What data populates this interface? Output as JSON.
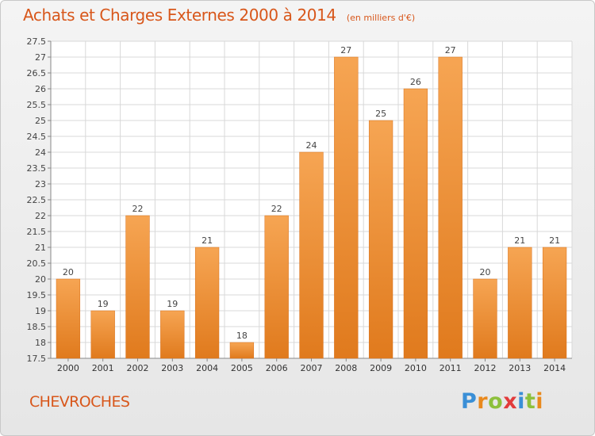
{
  "header": {
    "title": "Achats et Charges Externes 2000 à 2014",
    "subtitle": "(en milliers d'€)"
  },
  "footer": {
    "commune": "CHEVROCHES",
    "logo_text": "Proxiti"
  },
  "colors": {
    "accent": "#d8571b",
    "bar_top": "#f6a553",
    "bar_bottom": "#e07a1d",
    "grid": "#d8d8d8"
  },
  "chart_data": {
    "type": "bar",
    "title": "Achats et Charges Externes 2000 à 2014",
    "subtitle": "(en milliers d'€)",
    "xlabel": "",
    "ylabel": "",
    "categories": [
      "2000",
      "2001",
      "2002",
      "2003",
      "2004",
      "2005",
      "2006",
      "2007",
      "2008",
      "2009",
      "2010",
      "2011",
      "2012",
      "2013",
      "2014"
    ],
    "values": [
      20,
      19,
      22,
      19,
      21,
      18,
      22,
      24,
      27,
      25,
      26,
      27,
      20,
      21,
      21
    ],
    "ylim": [
      17.5,
      27.5
    ],
    "yticks": [
      17.5,
      18,
      18.5,
      19,
      19.5,
      20,
      20.5,
      21,
      21.5,
      22,
      22.5,
      23,
      23.5,
      24,
      24.5,
      25,
      25.5,
      26,
      26.5,
      27,
      27.5
    ],
    "grid": true,
    "data_labels": true
  }
}
